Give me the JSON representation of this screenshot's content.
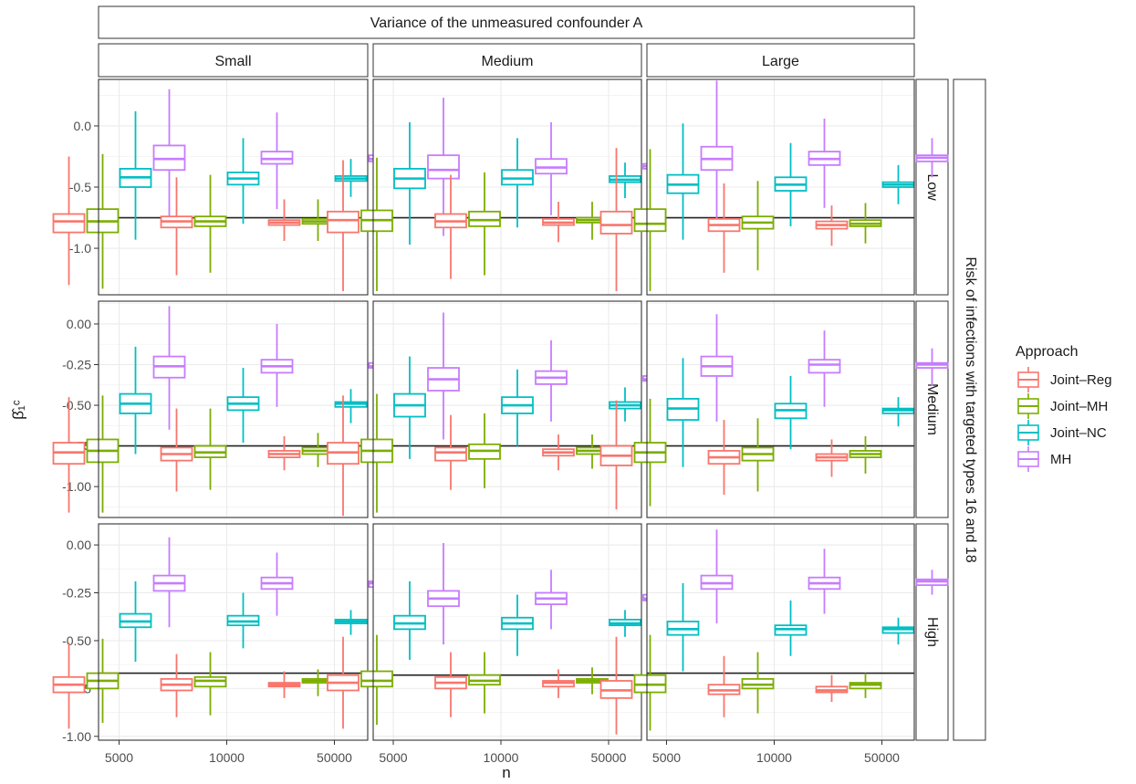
{
  "chart_data": {
    "type": "boxplot",
    "outer_strip_top": "Variance of the unmeasured confounder A",
    "outer_strip_right": "Risk of infections with targeted types 16 and 18",
    "col_labels": [
      "Small",
      "Medium",
      "Large"
    ],
    "row_labels": [
      "Low",
      "Medium",
      "High"
    ],
    "xlabel": "n",
    "ylabel": "β̂₁ᶜ",
    "x_categories": [
      "5000",
      "10000",
      "50000"
    ],
    "legend": {
      "title": "Approach",
      "entries": [
        "Joint–Reg",
        "Joint–MH",
        "Joint–NC",
        "MH"
      ],
      "colors": [
        "#F8766D",
        "#7CAE00",
        "#00BFC4",
        "#C77CFF"
      ]
    },
    "rows": [
      {
        "ylim": [
          -1.38,
          0.38
        ],
        "yticks": [
          0.0,
          -0.5,
          -1.0
        ],
        "ytick_labels": [
          "0.0",
          "-0.5",
          "-1.0"
        ],
        "reference_line": [
          -0.75,
          -0.75,
          -0.75
        ],
        "panels": [
          [
            [
              [
                -1.3,
                -0.87,
                -0.78,
                -0.72,
                -0.25
              ],
              [
                -1.33,
                -0.87,
                -0.78,
                -0.68,
                -0.23
              ],
              [
                -0.93,
                -0.5,
                -0.42,
                -0.35,
                0.12
              ],
              [
                -0.83,
                -0.36,
                -0.27,
                -0.16,
                0.3
              ]
            ],
            [
              [
                -1.22,
                -0.83,
                -0.78,
                -0.74,
                -0.42
              ],
              [
                -1.2,
                -0.82,
                -0.78,
                -0.74,
                -0.4
              ],
              [
                -0.8,
                -0.48,
                -0.43,
                -0.38,
                -0.1
              ],
              [
                -0.68,
                -0.31,
                -0.27,
                -0.21,
                0.11
              ]
            ],
            [
              [
                -0.94,
                -0.81,
                -0.79,
                -0.77,
                -0.6
              ],
              [
                -0.94,
                -0.8,
                -0.78,
                -0.76,
                -0.6
              ],
              [
                -0.58,
                -0.45,
                -0.43,
                -0.41,
                -0.27
              ],
              [
                -0.43,
                -0.29,
                -0.27,
                -0.24,
                -0.1
              ]
            ]
          ],
          [
            [
              [
                -1.35,
                -0.87,
                -0.77,
                -0.7,
                -0.28
              ],
              [
                -1.35,
                -0.86,
                -0.77,
                -0.69,
                -0.26
              ],
              [
                -0.97,
                -0.51,
                -0.43,
                -0.35,
                0.03
              ],
              [
                -0.9,
                -0.43,
                -0.36,
                -0.24,
                0.23
              ]
            ],
            [
              [
                -1.25,
                -0.83,
                -0.78,
                -0.72,
                -0.4
              ],
              [
                -1.22,
                -0.82,
                -0.77,
                -0.7,
                -0.38
              ],
              [
                -0.83,
                -0.48,
                -0.43,
                -0.36,
                -0.1
              ],
              [
                -0.73,
                -0.39,
                -0.34,
                -0.27,
                0.03
              ]
            ],
            [
              [
                -0.95,
                -0.81,
                -0.79,
                -0.76,
                -0.62
              ],
              [
                -0.93,
                -0.79,
                -0.77,
                -0.75,
                -0.62
              ],
              [
                -0.59,
                -0.46,
                -0.44,
                -0.41,
                -0.3
              ],
              [
                -0.5,
                -0.35,
                -0.33,
                -0.31,
                -0.18
              ]
            ]
          ],
          [
            [
              [
                -1.35,
                -0.88,
                -0.81,
                -0.7,
                -0.18
              ],
              [
                -1.35,
                -0.86,
                -0.8,
                -0.68,
                -0.19
              ],
              [
                -0.93,
                -0.55,
                -0.48,
                -0.4,
                0.02
              ],
              [
                -0.81,
                -0.36,
                -0.27,
                -0.17,
                0.37
              ]
            ],
            [
              [
                -1.2,
                -0.86,
                -0.81,
                -0.76,
                -0.47
              ],
              [
                -1.18,
                -0.84,
                -0.79,
                -0.74,
                -0.45
              ],
              [
                -0.82,
                -0.53,
                -0.48,
                -0.42,
                -0.14
              ],
              [
                -0.67,
                -0.32,
                -0.27,
                -0.21,
                0.06
              ]
            ],
            [
              [
                -0.98,
                -0.84,
                -0.81,
                -0.78,
                -0.65
              ],
              [
                -0.96,
                -0.82,
                -0.8,
                -0.77,
                -0.63
              ],
              [
                -0.64,
                -0.5,
                -0.48,
                -0.46,
                -0.32
              ],
              [
                -0.42,
                -0.29,
                -0.26,
                -0.24,
                -0.1
              ]
            ]
          ]
        ]
      },
      {
        "ylim": [
          -1.19,
          0.14
        ],
        "yticks": [
          0.0,
          -0.25,
          -0.5,
          -0.75,
          -1.0
        ],
        "ytick_labels": [
          "0.00",
          "-0.25",
          "-0.50",
          "-0.75",
          "-1.00"
        ],
        "reference_line": [
          -0.75,
          -0.75,
          -0.75
        ],
        "panels": [
          [
            [
              [
                -1.16,
                -0.86,
                -0.79,
                -0.73,
                -0.45
              ],
              [
                -1.16,
                -0.85,
                -0.78,
                -0.71,
                -0.44
              ],
              [
                -0.8,
                -0.55,
                -0.49,
                -0.43,
                -0.14
              ],
              [
                -0.65,
                -0.33,
                -0.26,
                -0.2,
                0.11
              ]
            ],
            [
              [
                -1.03,
                -0.84,
                -0.8,
                -0.76,
                -0.52
              ],
              [
                -1.02,
                -0.82,
                -0.79,
                -0.75,
                -0.52
              ],
              [
                -0.73,
                -0.53,
                -0.49,
                -0.45,
                -0.27
              ],
              [
                -0.51,
                -0.3,
                -0.26,
                -0.22,
                0.0
              ]
            ],
            [
              [
                -0.9,
                -0.82,
                -0.8,
                -0.78,
                -0.69
              ],
              [
                -0.88,
                -0.8,
                -0.78,
                -0.76,
                -0.67
              ],
              [
                -0.61,
                -0.51,
                -0.49,
                -0.48,
                -0.4
              ],
              [
                -0.36,
                -0.27,
                -0.26,
                -0.24,
                -0.15
              ]
            ]
          ],
          [
            [
              [
                -1.18,
                -0.86,
                -0.79,
                -0.73,
                -0.44
              ],
              [
                -1.16,
                -0.85,
                -0.78,
                -0.71,
                -0.43
              ],
              [
                -0.83,
                -0.57,
                -0.5,
                -0.43,
                -0.2
              ],
              [
                -0.71,
                -0.41,
                -0.34,
                -0.27,
                0.07
              ]
            ],
            [
              [
                -1.02,
                -0.84,
                -0.79,
                -0.76,
                -0.56
              ],
              [
                -1.01,
                -0.83,
                -0.78,
                -0.74,
                -0.55
              ],
              [
                -0.75,
                -0.55,
                -0.5,
                -0.45,
                -0.28
              ],
              [
                -0.6,
                -0.37,
                -0.33,
                -0.29,
                -0.1
              ]
            ],
            [
              [
                -0.9,
                -0.81,
                -0.79,
                -0.77,
                -0.68
              ],
              [
                -0.89,
                -0.8,
                -0.78,
                -0.76,
                -0.68
              ],
              [
                -0.6,
                -0.52,
                -0.5,
                -0.48,
                -0.39
              ],
              [
                -0.44,
                -0.35,
                -0.34,
                -0.32,
                -0.22
              ]
            ]
          ],
          [
            [
              [
                -1.14,
                -0.87,
                -0.81,
                -0.75,
                -0.47
              ],
              [
                -1.12,
                -0.85,
                -0.79,
                -0.73,
                -0.46
              ],
              [
                -0.88,
                -0.59,
                -0.52,
                -0.46,
                -0.21
              ],
              [
                -0.6,
                -0.32,
                -0.26,
                -0.2,
                0.06
              ]
            ],
            [
              [
                -1.05,
                -0.86,
                -0.82,
                -0.78,
                -0.59
              ],
              [
                -1.03,
                -0.84,
                -0.8,
                -0.76,
                -0.58
              ],
              [
                -0.77,
                -0.58,
                -0.53,
                -0.49,
                -0.32
              ],
              [
                -0.51,
                -0.3,
                -0.25,
                -0.22,
                -0.04
              ]
            ],
            [
              [
                -0.94,
                -0.84,
                -0.82,
                -0.8,
                -0.71
              ],
              [
                -0.92,
                -0.82,
                -0.8,
                -0.78,
                -0.69
              ],
              [
                -0.63,
                -0.55,
                -0.53,
                -0.52,
                -0.45
              ],
              [
                -0.38,
                -0.27,
                -0.25,
                -0.24,
                -0.15
              ]
            ]
          ]
        ]
      },
      {
        "ylim": [
          -1.02,
          0.11
        ],
        "yticks": [
          0.0,
          -0.25,
          -0.5,
          -0.75,
          -1.0
        ],
        "ytick_labels": [
          "0.00",
          "-0.25",
          "-0.50",
          "-0.75",
          "-1.00"
        ],
        "reference_line": [
          -0.67,
          -0.68,
          -0.67
        ],
        "panels": [
          [
            [
              [
                -0.96,
                -0.77,
                -0.73,
                -0.69,
                -0.51
              ],
              [
                -0.93,
                -0.75,
                -0.71,
                -0.67,
                -0.49
              ],
              [
                -0.61,
                -0.43,
                -0.4,
                -0.36,
                -0.19
              ],
              [
                -0.43,
                -0.24,
                -0.2,
                -0.16,
                0.04
              ]
            ],
            [
              [
                -0.9,
                -0.76,
                -0.73,
                -0.7,
                -0.57
              ],
              [
                -0.89,
                -0.74,
                -0.71,
                -0.69,
                -0.56
              ],
              [
                -0.54,
                -0.42,
                -0.4,
                -0.37,
                -0.25
              ],
              [
                -0.37,
                -0.23,
                -0.2,
                -0.17,
                -0.04
              ]
            ],
            [
              [
                -0.8,
                -0.74,
                -0.73,
                -0.72,
                -0.66
              ],
              [
                -0.79,
                -0.72,
                -0.71,
                -0.7,
                -0.65
              ],
              [
                -0.47,
                -0.41,
                -0.4,
                -0.39,
                -0.34
              ],
              [
                -0.27,
                -0.22,
                -0.2,
                -0.19,
                -0.13
              ]
            ]
          ],
          [
            [
              [
                -0.96,
                -0.76,
                -0.72,
                -0.68,
                -0.48
              ],
              [
                -0.94,
                -0.74,
                -0.71,
                -0.66,
                -0.47
              ],
              [
                -0.6,
                -0.44,
                -0.41,
                -0.37,
                -0.19
              ],
              [
                -0.52,
                -0.32,
                -0.28,
                -0.24,
                0.01
              ]
            ],
            [
              [
                -0.9,
                -0.75,
                -0.72,
                -0.69,
                -0.56
              ],
              [
                -0.88,
                -0.73,
                -0.71,
                -0.68,
                -0.56
              ],
              [
                -0.58,
                -0.44,
                -0.41,
                -0.38,
                -0.26
              ],
              [
                -0.44,
                -0.31,
                -0.28,
                -0.25,
                -0.13
              ]
            ],
            [
              [
                -0.8,
                -0.74,
                -0.72,
                -0.71,
                -0.65
              ],
              [
                -0.78,
                -0.72,
                -0.71,
                -0.7,
                -0.64
              ],
              [
                -0.48,
                -0.42,
                -0.41,
                -0.39,
                -0.34
              ],
              [
                -0.35,
                -0.29,
                -0.28,
                -0.26,
                -0.2
              ]
            ]
          ],
          [
            [
              [
                -0.99,
                -0.8,
                -0.76,
                -0.71,
                -0.48
              ],
              [
                -0.97,
                -0.77,
                -0.73,
                -0.68,
                -0.47
              ],
              [
                -0.66,
                -0.47,
                -0.44,
                -0.4,
                -0.2
              ],
              [
                -0.41,
                -0.23,
                -0.2,
                -0.16,
                0.08
              ]
            ],
            [
              [
                -0.9,
                -0.78,
                -0.76,
                -0.73,
                -0.58
              ],
              [
                -0.88,
                -0.75,
                -0.73,
                -0.7,
                -0.56
              ],
              [
                -0.58,
                -0.47,
                -0.44,
                -0.42,
                -0.29
              ],
              [
                -0.36,
                -0.23,
                -0.2,
                -0.17,
                -0.02
              ]
            ],
            [
              [
                -0.82,
                -0.77,
                -0.76,
                -0.74,
                -0.68
              ],
              [
                -0.8,
                -0.75,
                -0.73,
                -0.72,
                -0.67
              ],
              [
                -0.52,
                -0.46,
                -0.44,
                -0.43,
                -0.38
              ],
              [
                -0.26,
                -0.21,
                -0.19,
                -0.18,
                -0.13
              ]
            ]
          ]
        ]
      }
    ]
  }
}
